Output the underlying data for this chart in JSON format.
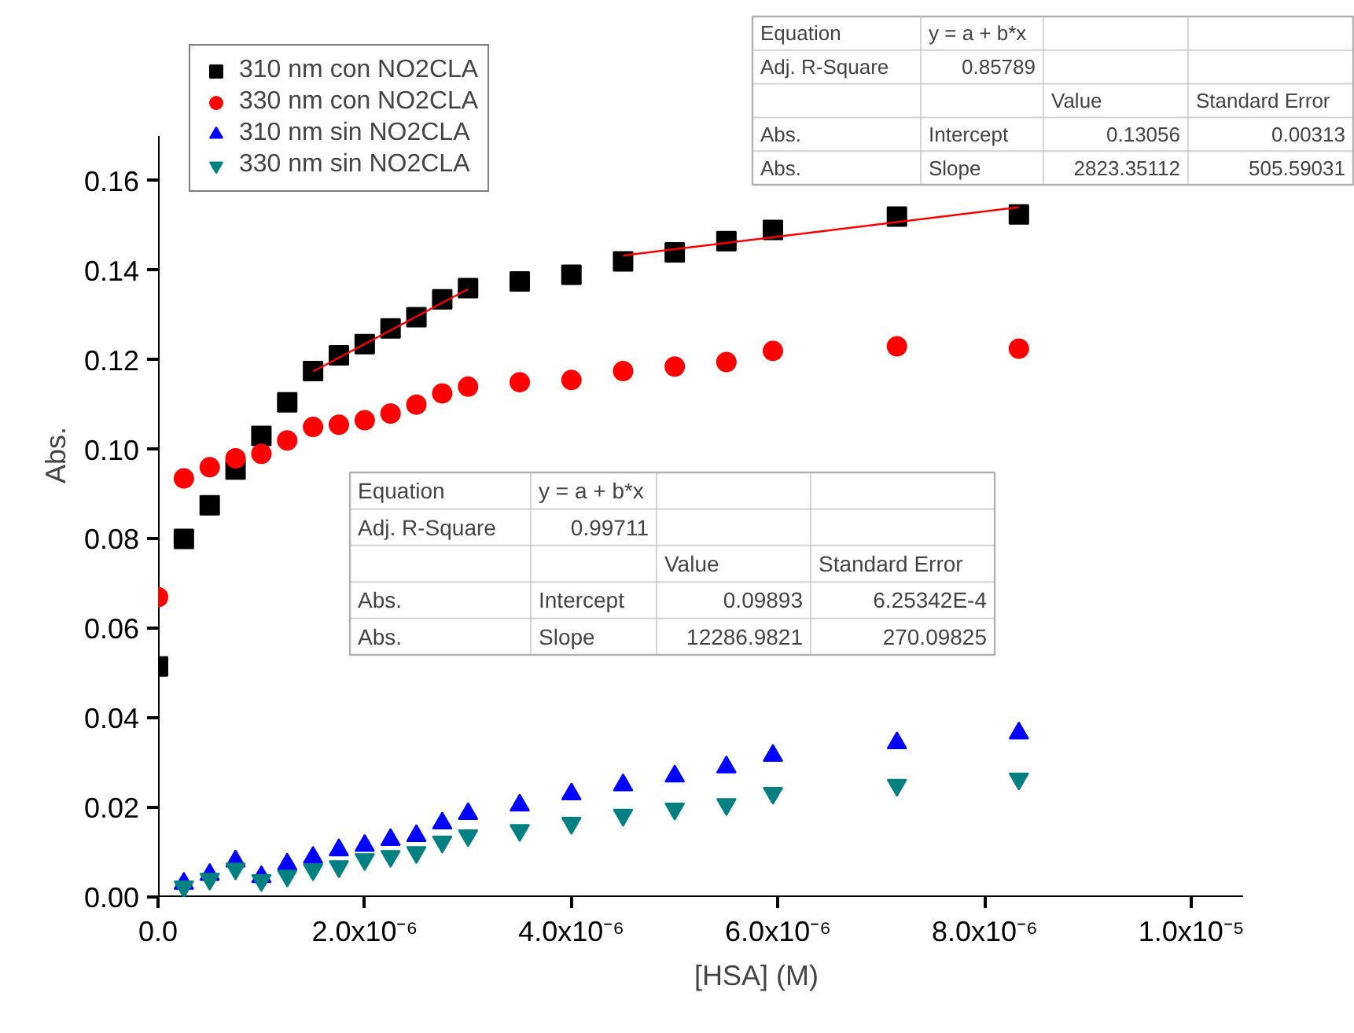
{
  "chart_data": {
    "type": "scatter",
    "xlabel": "[HSA] (M)",
    "ylabel": "Abs.",
    "x": [
      0,
      2.5e-07,
      5e-07,
      7.5e-07,
      1e-06,
      1.25e-06,
      1.5e-06,
      1.75e-06,
      2e-06,
      2.25e-06,
      2.5e-06,
      2.75e-06,
      3e-06,
      3.5e-06,
      4e-06,
      4.5e-06,
      5e-06,
      5.5e-06,
      5.95e-06,
      7.15e-06,
      8.33e-06
    ],
    "series": [
      {
        "name": "310 nm con NO2CLA",
        "color": "#000000",
        "marker": "square",
        "values": [
          0.0515,
          0.08,
          0.0875,
          0.0955,
          0.103,
          0.1105,
          0.1175,
          0.121,
          0.1235,
          0.127,
          0.1295,
          0.1335,
          0.136,
          0.1375,
          0.139,
          0.142,
          0.144,
          0.1465,
          0.149,
          0.152,
          0.1525
        ]
      },
      {
        "name": "330 nm con NO2CLA",
        "color": "#ff0000",
        "marker": "circle",
        "values": [
          0.067,
          0.0935,
          0.096,
          0.098,
          0.099,
          0.102,
          0.105,
          0.1055,
          0.1065,
          0.108,
          0.11,
          0.1125,
          0.114,
          0.115,
          0.1155,
          0.1175,
          0.1185,
          0.1195,
          0.122,
          0.123,
          0.1225
        ]
      },
      {
        "name": "310 nm sin NO2CLA",
        "color": "#0000ff",
        "marker": "triangle",
        "values": [
          null,
          0.003,
          0.005,
          0.008,
          0.0045,
          0.0073,
          0.0088,
          0.0105,
          0.0115,
          0.0128,
          0.0137,
          0.0165,
          0.0186,
          0.0205,
          0.023,
          0.025,
          0.027,
          0.029,
          0.0316,
          0.0344,
          0.0366
        ]
      },
      {
        "name": "330 nm sin NO2CLA",
        "color": "#008080",
        "marker": "triangle_down",
        "values": [
          null,
          0.0023,
          0.004,
          0.0063,
          0.0037,
          0.0047,
          0.0061,
          0.0068,
          0.0084,
          0.0091,
          0.01,
          0.0123,
          0.0137,
          0.0149,
          0.0165,
          0.0183,
          0.0197,
          0.0207,
          0.0232,
          0.025,
          0.0264
        ]
      },
      {
        "type": "line",
        "color": "#ff0000",
        "x": [
          1.5e-06,
          3e-06
        ],
        "values": [
          0.1174,
          0.1358
        ]
      },
      {
        "type": "line",
        "color": "#ff0000",
        "x": [
          4.5e-06,
          8.33e-06
        ],
        "values": [
          0.1433,
          0.1541
        ]
      }
    ],
    "xlim": [
      0,
      1.05e-05
    ],
    "ylim": [
      0,
      0.17
    ],
    "xticks": [
      {
        "value": 0,
        "label": "0.0"
      },
      {
        "value": 2e-06,
        "label": "2.0x10⁻⁶"
      },
      {
        "value": 4e-06,
        "label": "4.0x10⁻⁶"
      },
      {
        "value": 6e-06,
        "label": "6.0x10⁻⁶"
      },
      {
        "value": 8e-06,
        "label": "8.0x10⁻⁶"
      },
      {
        "value": 1e-05,
        "label": "1.0x10⁻⁵"
      }
    ],
    "yticks": [
      {
        "value": 0,
        "label": "0.00"
      },
      {
        "value": 0.02,
        "label": "0.02"
      },
      {
        "value": 0.04,
        "label": "0.04"
      },
      {
        "value": 0.06,
        "label": "0.06"
      },
      {
        "value": 0.08,
        "label": "0.08"
      },
      {
        "value": 0.1,
        "label": "0.10"
      },
      {
        "value": 0.12,
        "label": "0.12"
      },
      {
        "value": 0.14,
        "label": "0.14"
      },
      {
        "value": 0.16,
        "label": "0.16"
      }
    ],
    "grid": false,
    "legend": "top left",
    "line_style": "solid",
    "annotations": [
      "Equation",
      "y = a + b*x",
      "Adj. R-Square",
      "0.85789",
      "Value",
      "Standard Error",
      "Abs.",
      "Intercept",
      "0.13056",
      "0.00313",
      "Abs.",
      "Slope",
      "2823.35112",
      "505.59031",
      "Equation",
      "y = a + b*x",
      "Adj. R-Square",
      "0.99711",
      "Value",
      "Standard Error",
      "Abs.",
      "Intercept",
      "0.09893",
      "6.25342E-4",
      "Abs.",
      "Slope",
      "12286.9821",
      "270.09825"
    ]
  }
}
